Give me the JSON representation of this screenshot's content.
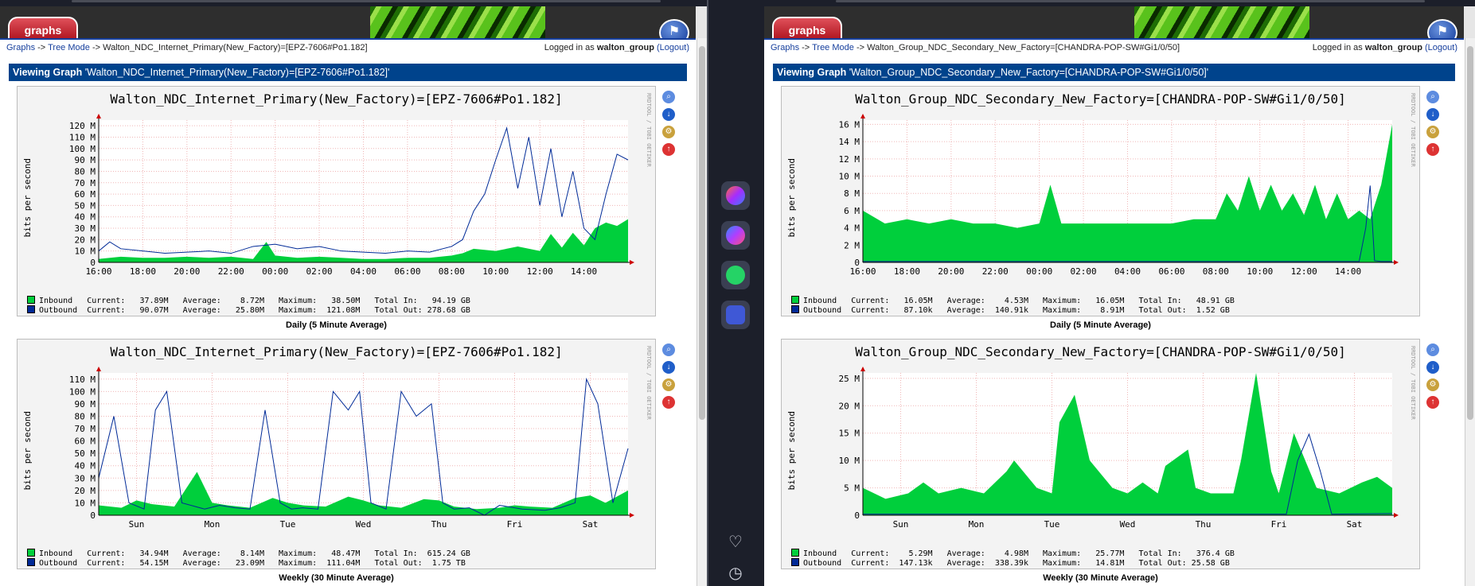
{
  "panes": [
    {
      "tab_label": "graphs",
      "breadcrumb": {
        "graphs": "Graphs",
        "sep1": " -> ",
        "tree": "Tree Mode",
        "sep2": " -> ",
        "current": "Walton_NDC_Internet_Primary(New_Factory)=[EPZ-7606#Po1.182]"
      },
      "login": {
        "prefix": "Logged in as ",
        "user": "walton_group",
        "logout": "(Logout)"
      },
      "viewing": {
        "label": "Viewing Graph",
        "name": "'Walton_NDC_Internet_Primary(New_Factory)=[EPZ-7606#Po1.182]'"
      },
      "graphs": [
        {
          "title": "Walton_NDC_Internet_Primary(New_Factory)=[EPZ-7606#Po1.182]",
          "side_tag": "RRDTOOL / TOBI OETIKER",
          "ylabel": "bits per second",
          "legend": [
            {
              "name": "Inbound",
              "line": "Current:   37.89M   Average:    8.72M   Maximum:   38.50M   Total In:   94.19 GB",
              "color": "#00cf3c"
            },
            {
              "name": "Outbound",
              "line": "Current:   90.07M   Average:   25.80M   Maximum:  121.08M   Total Out: 278.68 GB",
              "color": "#002a97"
            }
          ],
          "caption": "Daily (5 Minute Average)"
        },
        {
          "title": "Walton_NDC_Internet_Primary(New_Factory)=[EPZ-7606#Po1.182]",
          "side_tag": "RRDTOOL / TOBI OETIKER",
          "ylabel": "bits per second",
          "legend": [
            {
              "name": "Inbound",
              "line": "Current:   34.94M   Average:    8.14M   Maximum:   48.47M   Total In:  615.24 GB",
              "color": "#00cf3c"
            },
            {
              "name": "Outbound",
              "line": "Current:   54.15M   Average:   23.09M   Maximum:  111.04M   Total Out:  1.75 TB",
              "color": "#002a97"
            }
          ],
          "caption": "Weekly (30 Minute Average)"
        }
      ]
    },
    {
      "tab_label": "graphs",
      "breadcrumb": {
        "graphs": "Graphs",
        "sep1": " -> ",
        "tree": "Tree Mode",
        "sep2": " -> ",
        "current": "Walton_Group_NDC_Secondary_New_Factory=[CHANDRA-POP-SW#Gi1/0/50]"
      },
      "login": {
        "prefix": "Logged in as ",
        "user": "walton_group",
        "logout": "(Logout)"
      },
      "viewing": {
        "label": "Viewing Graph",
        "name": "'Walton_Group_NDC_Secondary_New_Factory=[CHANDRA-POP-SW#Gi1/0/50]'"
      },
      "graphs": [
        {
          "title": "Walton_Group_NDC_Secondary_New_Factory=[CHANDRA-POP-SW#Gi1/0/50]",
          "side_tag": "RRDTOOL / TOBI OETIKER",
          "ylabel": "bits per second",
          "legend": [
            {
              "name": "Inbound",
              "line": "Current:   16.05M   Average:    4.53M   Maximum:   16.05M   Total In:   48.91 GB",
              "color": "#00cf3c"
            },
            {
              "name": "Outbound",
              "line": "Current:   87.10k   Average:  140.91k   Maximum:    8.91M   Total Out:  1.52 GB",
              "color": "#002a97"
            }
          ],
          "caption": "Daily (5 Minute Average)"
        },
        {
          "title": "Walton_Group_NDC_Secondary_New_Factory=[CHANDRA-POP-SW#Gi1/0/50]",
          "side_tag": "RRDTOOL / TOBI OETIKER",
          "ylabel": "bits per second",
          "legend": [
            {
              "name": "Inbound",
              "line": "Current:    5.29M   Average:    4.98M   Maximum:   25.77M   Total In:   376.4 GB",
              "color": "#00cf3c"
            },
            {
              "name": "Outbound",
              "line": "Current:  147.13k   Average:  338.39k   Maximum:   14.81M   Total Out: 25.58 GB",
              "color": "#002a97"
            }
          ],
          "caption": "Weekly (30 Minute Average)"
        }
      ]
    }
  ],
  "chart_data": [
    {
      "type": "area",
      "title": "Walton_NDC_Internet_Primary(New_Factory)=[EPZ-7606#Po1.182]",
      "ylabel": "bits per second",
      "ylim": [
        0,
        125
      ],
      "yunit": "M",
      "yticks": [
        0,
        10,
        20,
        30,
        40,
        50,
        60,
        70,
        80,
        90,
        100,
        110,
        120
      ],
      "xlim": [
        0,
        24
      ],
      "xticks": [
        0,
        2,
        4,
        6,
        8,
        10,
        12,
        14,
        16,
        18,
        20,
        22
      ],
      "xtick_labels": [
        "16:00",
        "18:00",
        "20:00",
        "22:00",
        "00:00",
        "02:00",
        "04:00",
        "06:00",
        "08:00",
        "10:00",
        "12:00",
        "14:00"
      ],
      "series": [
        {
          "name": "Inbound",
          "style": "area",
          "color": "#00cf3c",
          "x": [
            0,
            1,
            2,
            3,
            4,
            5,
            6,
            7,
            7.6,
            8,
            9,
            10,
            11,
            12,
            13,
            14,
            15,
            16,
            16.5,
            17,
            18,
            19,
            20,
            20.5,
            21,
            21.5,
            22,
            22.5,
            23,
            23.5,
            24
          ],
          "values": [
            3,
            5,
            4,
            4,
            5,
            4,
            5,
            3,
            18,
            6,
            4,
            5,
            4,
            3,
            3,
            4,
            4,
            6,
            8,
            12,
            10,
            14,
            10,
            25,
            13,
            26,
            15,
            30,
            35,
            32,
            38
          ]
        },
        {
          "name": "Outbound",
          "style": "line",
          "color": "#002a97",
          "x": [
            0,
            0.5,
            1,
            2,
            3,
            4,
            5,
            6,
            7,
            8,
            9,
            10,
            11,
            12,
            13,
            14,
            15,
            16,
            16.5,
            17,
            17.5,
            18,
            18.5,
            19,
            19.5,
            20,
            20.5,
            21,
            21.5,
            22,
            22.5,
            23,
            23.5,
            24
          ],
          "values": [
            10,
            18,
            12,
            10,
            8,
            9,
            10,
            8,
            14,
            16,
            12,
            14,
            10,
            9,
            8,
            10,
            9,
            14,
            20,
            45,
            60,
            90,
            118,
            65,
            110,
            50,
            100,
            40,
            80,
            30,
            20,
            60,
            95,
            90
          ]
        }
      ]
    },
    {
      "type": "area",
      "title": "Walton_NDC_Internet_Primary(New_Factory)=[EPZ-7606#Po1.182]",
      "ylabel": "bits per second",
      "ylim": [
        0,
        115
      ],
      "yunit": "M",
      "yticks": [
        0,
        10,
        20,
        30,
        40,
        50,
        60,
        70,
        80,
        90,
        100,
        110
      ],
      "xlim": [
        0,
        7
      ],
      "xticks": [
        0.5,
        1.5,
        2.5,
        3.5,
        4.5,
        5.5,
        6.5
      ],
      "xtick_labels": [
        "Sun",
        "Mon",
        "Tue",
        "Wed",
        "Thu",
        "Fri",
        "Sat"
      ],
      "series": [
        {
          "name": "Inbound",
          "style": "area",
          "color": "#00cf3c",
          "x": [
            0,
            0.3,
            0.5,
            0.7,
            1,
            1.3,
            1.5,
            1.7,
            2,
            2.3,
            2.5,
            2.7,
            3,
            3.3,
            3.5,
            3.7,
            4,
            4.3,
            4.5,
            4.7,
            5,
            5.3,
            5.5,
            5.7,
            6,
            6.3,
            6.5,
            6.7,
            7
          ],
          "values": [
            8,
            6,
            12,
            9,
            7,
            35,
            10,
            8,
            6,
            14,
            10,
            8,
            7,
            15,
            12,
            8,
            6,
            13,
            12,
            7,
            5,
            6,
            8,
            7,
            6,
            14,
            16,
            10,
            20
          ]
        },
        {
          "name": "Outbound",
          "style": "line",
          "color": "#002a97",
          "x": [
            0,
            0.2,
            0.4,
            0.6,
            0.75,
            0.9,
            1.1,
            1.4,
            1.6,
            1.8,
            2.0,
            2.2,
            2.4,
            2.55,
            2.7,
            2.9,
            3.1,
            3.3,
            3.45,
            3.6,
            3.8,
            4.0,
            4.2,
            4.4,
            4.55,
            4.7,
            4.9,
            5.1,
            5.3,
            5.6,
            5.9,
            6.1,
            6.3,
            6.45,
            6.6,
            6.8,
            7
          ],
          "values": [
            30,
            80,
            10,
            5,
            85,
            100,
            10,
            5,
            8,
            6,
            5,
            85,
            10,
            5,
            6,
            5,
            100,
            85,
            100,
            10,
            5,
            100,
            80,
            90,
            10,
            5,
            6,
            0,
            8,
            5,
            4,
            6,
            10,
            110,
            90,
            10,
            54
          ]
        }
      ]
    },
    {
      "type": "area",
      "title": "Walton_Group_NDC_Secondary_New_Factory=[CHANDRA-POP-SW#Gi1/0/50]",
      "ylabel": "bits per second",
      "ylim": [
        0,
        16.5
      ],
      "yunit": "M",
      "yticks": [
        0,
        2,
        4,
        6,
        8,
        10,
        12,
        14,
        16
      ],
      "xlim": [
        0,
        24
      ],
      "xticks": [
        0,
        2,
        4,
        6,
        8,
        10,
        12,
        14,
        16,
        18,
        20,
        22
      ],
      "xtick_labels": [
        "16:00",
        "18:00",
        "20:00",
        "22:00",
        "00:00",
        "02:00",
        "04:00",
        "06:00",
        "08:00",
        "10:00",
        "12:00",
        "14:00"
      ],
      "series": [
        {
          "name": "Inbound",
          "style": "area",
          "color": "#00cf3c",
          "x": [
            0,
            1,
            2,
            3,
            4,
            5,
            6,
            7,
            8,
            8.5,
            9,
            10,
            11,
            12,
            13,
            14,
            15,
            16,
            16.5,
            17,
            17.5,
            18,
            18.5,
            19,
            19.5,
            20,
            20.5,
            21,
            21.5,
            22,
            22.5,
            23,
            23.5,
            24
          ],
          "values": [
            6,
            4.5,
            5,
            4.5,
            5,
            4.5,
            4.5,
            4,
            4.5,
            9,
            4.5,
            4.5,
            4.5,
            4.5,
            4.5,
            4.5,
            5,
            5,
            8,
            6,
            10,
            6,
            9,
            6,
            8,
            5.5,
            9,
            5,
            8,
            5,
            6,
            5,
            9,
            16
          ]
        },
        {
          "name": "Outbound",
          "style": "line",
          "color": "#002a97",
          "x": [
            0,
            20,
            22.5,
            22.8,
            23.0,
            23.2,
            23.5,
            24
          ],
          "values": [
            0.1,
            0.1,
            0.1,
            4,
            8.9,
            0.2,
            0.1,
            0.1
          ]
        }
      ]
    },
    {
      "type": "area",
      "title": "Walton_Group_NDC_Secondary_New_Factory=[CHANDRA-POP-SW#Gi1/0/50]",
      "ylabel": "bits per second",
      "ylim": [
        0,
        26
      ],
      "yunit": "M",
      "yticks": [
        0,
        5,
        10,
        15,
        20,
        25
      ],
      "xlim": [
        0,
        7
      ],
      "xticks": [
        0.5,
        1.5,
        2.5,
        3.5,
        4.5,
        5.5,
        6.5
      ],
      "xtick_labels": [
        "Sun",
        "Mon",
        "Tue",
        "Wed",
        "Thu",
        "Fri",
        "Sat"
      ],
      "series": [
        {
          "name": "Inbound",
          "style": "area",
          "color": "#00cf3c",
          "x": [
            0,
            0.3,
            0.6,
            0.8,
            1.0,
            1.3,
            1.6,
            1.9,
            2.0,
            2.3,
            2.5,
            2.6,
            2.8,
            3.0,
            3.3,
            3.5,
            3.7,
            3.9,
            4.0,
            4.3,
            4.4,
            4.6,
            4.9,
            5.0,
            5.2,
            5.4,
            5.5,
            5.7,
            6.0,
            6.3,
            6.6,
            6.8,
            7
          ],
          "values": [
            5,
            3,
            4,
            6,
            4,
            5,
            4,
            8,
            10,
            5,
            4,
            17,
            22,
            10,
            5,
            4,
            6,
            4,
            9,
            12,
            5,
            4,
            4,
            10,
            26,
            8,
            4,
            15,
            5,
            4,
            6,
            7,
            5
          ]
        },
        {
          "name": "Outbound",
          "style": "line",
          "color": "#002a97",
          "x": [
            0,
            5.6,
            5.75,
            5.9,
            6.05,
            6.2,
            7
          ],
          "values": [
            0.2,
            0.2,
            10,
            14.8,
            8,
            0.2,
            0.3
          ]
        }
      ]
    }
  ]
}
